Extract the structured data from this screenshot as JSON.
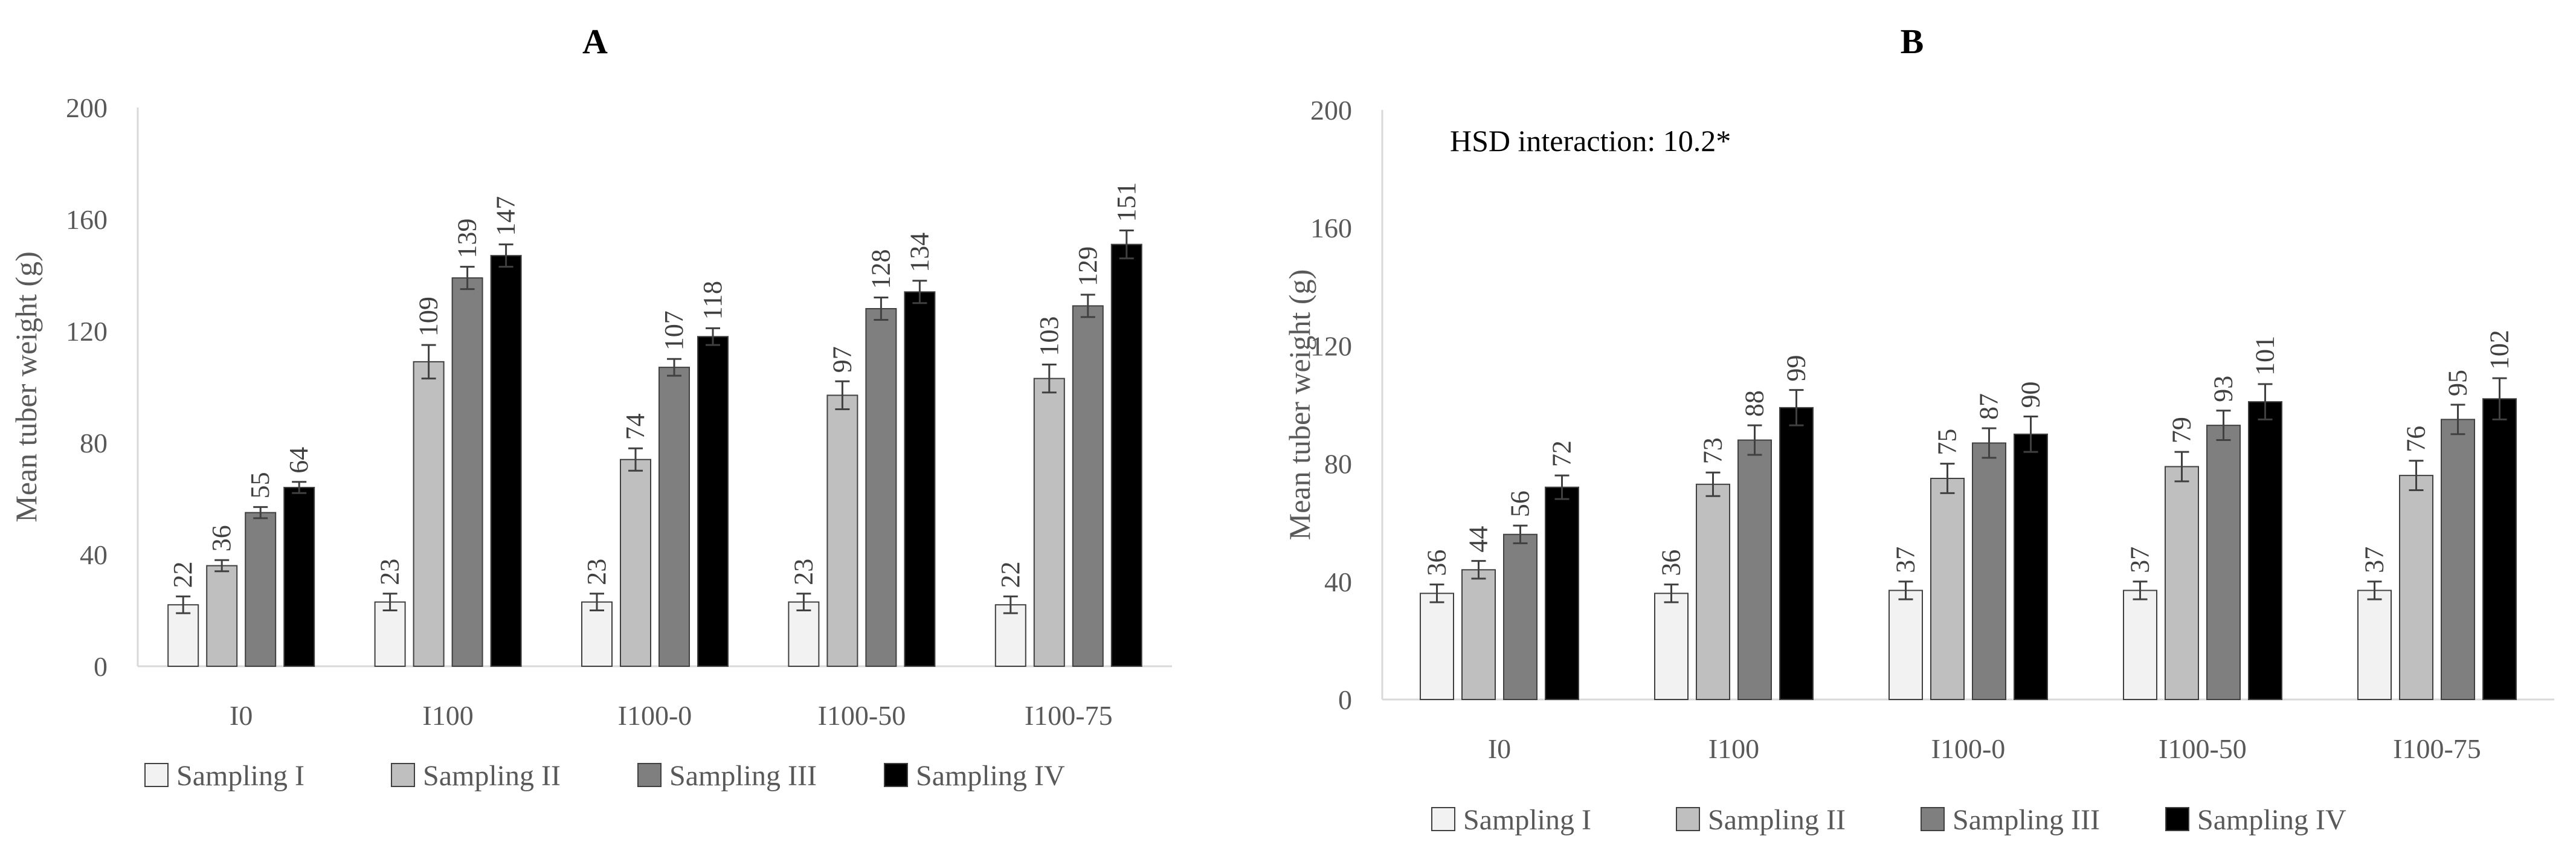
{
  "chart_data": [
    {
      "type": "bar",
      "panel": "A",
      "title": "A",
      "ylabel": "Mean tuber weight (g)",
      "xlabel": "",
      "ylim": [
        0,
        200
      ],
      "yticks": [
        0,
        40,
        80,
        120,
        160,
        200
      ],
      "categories": [
        "I0",
        "I100",
        "I100-0",
        "I100-50",
        "I100-75"
      ],
      "legend_position": "bottom",
      "series": [
        {
          "name": "Sampling I",
          "color": "#f2f2f2",
          "values": [
            22,
            23,
            23,
            23,
            22
          ],
          "errors": [
            3,
            3,
            3,
            3,
            3
          ]
        },
        {
          "name": "Sampling II",
          "color": "#bfbfbf",
          "values": [
            36,
            109,
            74,
            97,
            103
          ],
          "errors": [
            2,
            6,
            4,
            5,
            5
          ]
        },
        {
          "name": "Sampling III",
          "color": "#7f7f7f",
          "values": [
            55,
            139,
            107,
            128,
            129
          ],
          "errors": [
            2,
            4,
            3,
            4,
            4
          ]
        },
        {
          "name": "Sampling IV",
          "color": "#000000",
          "values": [
            64,
            147,
            118,
            134,
            151
          ],
          "errors": [
            2,
            4,
            3,
            4,
            5
          ]
        }
      ]
    },
    {
      "type": "bar",
      "panel": "B",
      "title": "B",
      "ylabel": "Mean tuber weight (g)",
      "xlabel": "",
      "ylim": [
        0,
        200
      ],
      "yticks": [
        0,
        40,
        80,
        120,
        160,
        200
      ],
      "categories": [
        "I0",
        "I100",
        "I100-0",
        "I100-50",
        "I100-75"
      ],
      "legend_position": "bottom",
      "annotation": "HSD interaction: 10.2*",
      "series": [
        {
          "name": "Sampling I",
          "color": "#f2f2f2",
          "values": [
            36,
            36,
            37,
            37,
            37
          ],
          "errors": [
            3,
            3,
            3,
            3,
            3
          ]
        },
        {
          "name": "Sampling II",
          "color": "#bfbfbf",
          "values": [
            44,
            73,
            75,
            79,
            76
          ],
          "errors": [
            3,
            4,
            5,
            5,
            5
          ]
        },
        {
          "name": "Sampling III",
          "color": "#7f7f7f",
          "values": [
            56,
            88,
            87,
            93,
            95
          ],
          "errors": [
            3,
            5,
            5,
            5,
            5
          ]
        },
        {
          "name": "Sampling IV",
          "color": "#000000",
          "values": [
            72,
            99,
            90,
            101,
            102
          ],
          "errors": [
            4,
            6,
            6,
            6,
            7
          ]
        }
      ]
    }
  ]
}
